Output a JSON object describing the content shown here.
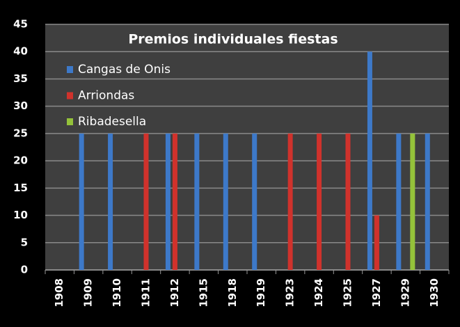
{
  "chart_data": {
    "type": "bar",
    "title": "Premios individuales fiestas",
    "categories": [
      "1908",
      "1909",
      "1910",
      "1911",
      "1912",
      "1915",
      "1918",
      "1919",
      "1923",
      "1924",
      "1925",
      "1927",
      "1929",
      "1930"
    ],
    "series": [
      {
        "name": "Cangas de Onis",
        "color": "#3d79c9",
        "values": [
          null,
          25,
          25,
          null,
          25,
          25,
          25,
          25,
          null,
          null,
          null,
          40,
          25,
          25
        ]
      },
      {
        "name": "Arriondas",
        "color": "#d0322c",
        "values": [
          null,
          null,
          null,
          25,
          25,
          null,
          null,
          null,
          25,
          25,
          25,
          10,
          null,
          null
        ]
      },
      {
        "name": "Ribadesella",
        "color": "#94c23a",
        "values": [
          null,
          null,
          null,
          null,
          null,
          null,
          null,
          null,
          null,
          null,
          null,
          null,
          25,
          null
        ]
      }
    ],
    "ylim": [
      0,
      45
    ],
    "yticks": [
      0,
      5,
      10,
      15,
      20,
      25,
      30,
      35,
      40,
      45
    ],
    "grid": true,
    "legend": "upper left"
  }
}
